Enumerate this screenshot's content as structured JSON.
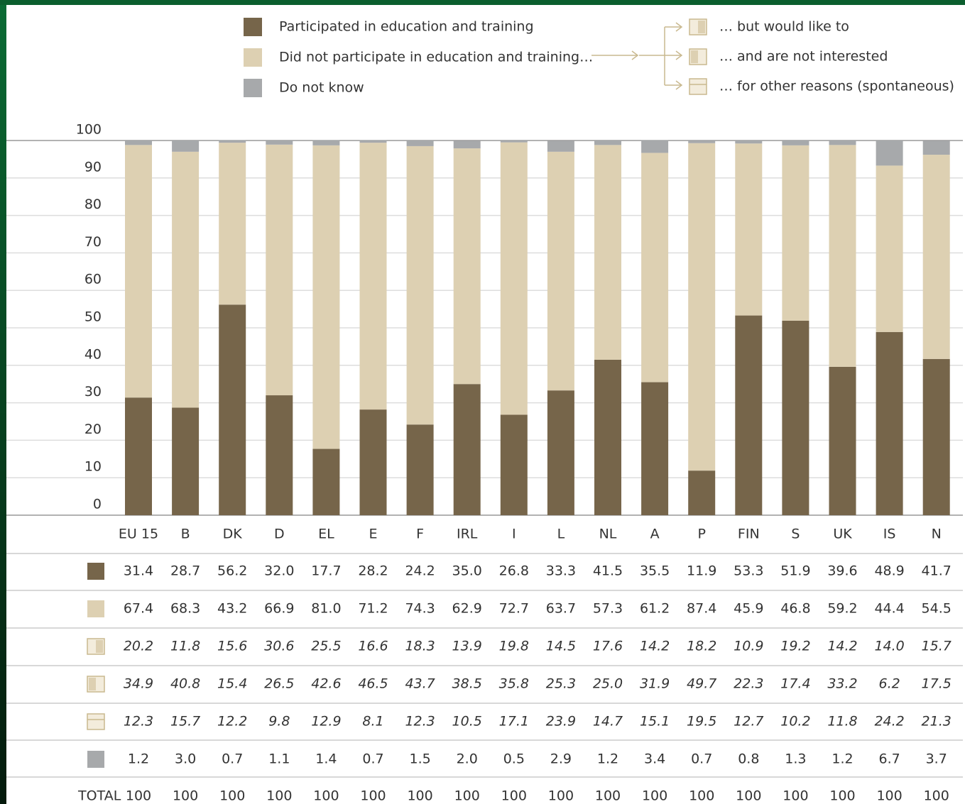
{
  "chart_data": {
    "type": "bar",
    "stacked": true,
    "categories": [
      "EU 15",
      "B",
      "DK",
      "D",
      "EL",
      "E",
      "F",
      "IRL",
      "I",
      "L",
      "NL",
      "A",
      "P",
      "FIN",
      "S",
      "UK",
      "IS",
      "N"
    ],
    "ylim": [
      0,
      100
    ],
    "yticks": [
      0,
      10,
      20,
      30,
      40,
      50,
      60,
      70,
      80,
      90,
      100
    ],
    "grid": true,
    "series": [
      {
        "name": "Participated in education and training",
        "color": "#76654a",
        "values": [
          31.4,
          28.7,
          56.2,
          32.0,
          17.7,
          28.2,
          24.2,
          35.0,
          26.8,
          33.3,
          41.5,
          35.5,
          11.9,
          53.3,
          51.9,
          39.6,
          48.9,
          41.7
        ],
        "value_labels": [
          "31.4",
          "28.7",
          "56.2",
          "32.0",
          "17.7",
          "28.2",
          "24.2",
          "35.0",
          "26.8",
          "33.3",
          "41.5",
          "35.5",
          "11.9",
          "53.3",
          "51.9",
          "39.6",
          "48.9",
          "41.7"
        ]
      },
      {
        "name": "Did not participate in education and training…",
        "color": "#ddd0b2",
        "values": [
          67.4,
          68.3,
          43.2,
          66.9,
          81.0,
          71.2,
          74.3,
          62.9,
          72.7,
          63.7,
          57.3,
          61.2,
          87.4,
          45.9,
          46.8,
          59.2,
          44.4,
          54.5
        ],
        "value_labels": [
          "67.4",
          "68.3",
          "43.2",
          "66.9",
          "81.0",
          "71.2",
          "74.3",
          "62.9",
          "72.7",
          "63.7",
          "57.3",
          "61.2",
          "87.4",
          "45.9",
          "46.8",
          "59.2",
          "44.4",
          "54.5"
        ]
      },
      {
        "name": "Do not know",
        "color": "#a7a9ab",
        "values": [
          1.2,
          3.0,
          0.7,
          1.1,
          1.4,
          0.7,
          1.5,
          2.0,
          0.5,
          2.9,
          1.2,
          3.4,
          0.7,
          0.8,
          1.3,
          1.2,
          6.7,
          3.7
        ],
        "value_labels": [
          "1.2",
          "3.0",
          "0.7",
          "1.1",
          "1.4",
          "0.7",
          "1.5",
          "2.0",
          "0.5",
          "2.9",
          "1.2",
          "3.4",
          "0.7",
          "0.8",
          "1.3",
          "1.2",
          "6.7",
          "3.7"
        ]
      }
    ],
    "sub_series": [
      {
        "name": "… but would like to",
        "values": [
          20.2,
          11.8,
          15.6,
          30.6,
          25.5,
          16.6,
          18.3,
          13.9,
          19.8,
          14.5,
          17.6,
          14.2,
          18.2,
          10.9,
          19.2,
          14.2,
          14.0,
          15.7
        ],
        "value_labels": [
          "20.2",
          "11.8",
          "15.6",
          "30.6",
          "25.5",
          "16.6",
          "18.3",
          "13.9",
          "19.8",
          "14.5",
          "17.6",
          "14.2",
          "18.2",
          "10.9",
          "19.2",
          "14.2",
          "14.0",
          "15.7"
        ]
      },
      {
        "name": "… and are not  interested",
        "values": [
          34.9,
          40.8,
          15.4,
          26.5,
          42.6,
          46.5,
          43.7,
          38.5,
          35.8,
          25.3,
          25.0,
          31.9,
          49.7,
          22.3,
          17.4,
          33.2,
          6.2,
          17.5
        ],
        "value_labels": [
          "34.9",
          "40.8",
          "15.4",
          "26.5",
          "42.6",
          "46.5",
          "43.7",
          "38.5",
          "35.8",
          "25.3",
          "25.0",
          "31.9",
          "49.7",
          "22.3",
          "17.4",
          "33.2",
          "6.2",
          "17.5"
        ]
      },
      {
        "name": "… for other reasons (spontaneous)",
        "values": [
          12.3,
          15.7,
          12.2,
          9.8,
          12.9,
          8.1,
          12.3,
          10.5,
          17.1,
          23.9,
          14.7,
          15.1,
          19.5,
          12.7,
          10.2,
          11.8,
          24.2,
          21.3
        ],
        "value_labels": [
          "12.3",
          "15.7",
          "12.2",
          "9.8",
          "12.9",
          "8.1",
          "12.3",
          "10.5",
          "17.1",
          "23.9",
          "14.7",
          "15.1",
          "19.5",
          "12.7",
          "10.2",
          "11.8",
          "24.2",
          "21.3"
        ]
      }
    ],
    "total": {
      "label": "TOTAL",
      "values": [
        100,
        100,
        100,
        100,
        100,
        100,
        100,
        100,
        100,
        100,
        100,
        100,
        100,
        100,
        100,
        100,
        100,
        100
      ]
    }
  }
}
